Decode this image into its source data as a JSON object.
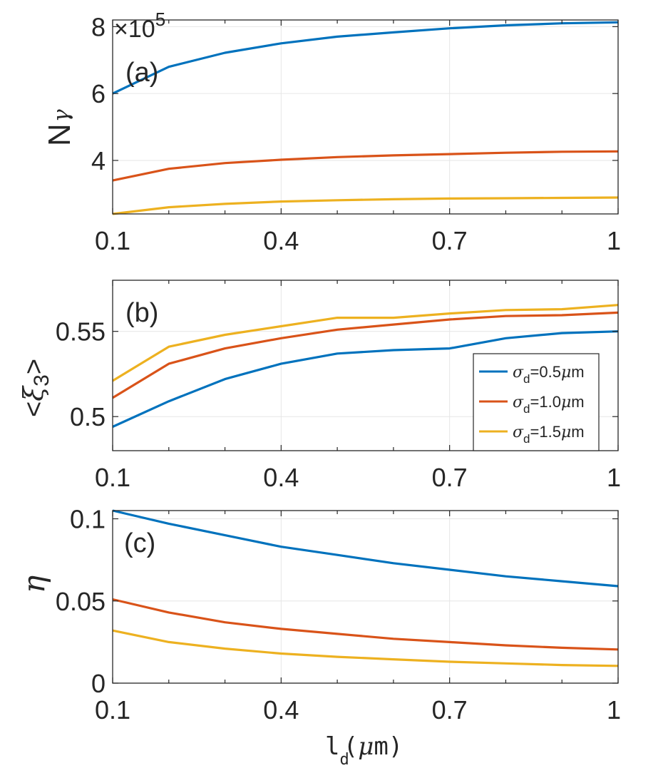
{
  "chart_data": [
    {
      "type": "line",
      "panel_label": "(a)",
      "ylabel_main": "N",
      "ylabel_sub": "γ",
      "exponent_prefix": "×10",
      "exponent_power": "5",
      "x": [
        0.1,
        0.2,
        0.3,
        0.4,
        0.5,
        0.6,
        0.7,
        0.8,
        0.9,
        1.0
      ],
      "xlim": [
        0.1,
        1.0
      ],
      "ylim": [
        2.4,
        8.2
      ],
      "xticks": [
        {
          "v": 0.1,
          "label": "0.1"
        },
        {
          "v": 0.4,
          "label": "0.4"
        },
        {
          "v": 0.7,
          "label": "0.7"
        },
        {
          "v": 1.0,
          "label": "1"
        }
      ],
      "yticks": [
        {
          "v": 4,
          "label": "4"
        },
        {
          "v": 6,
          "label": "6"
        },
        {
          "v": 8,
          "label": "8"
        }
      ],
      "grid": true,
      "series": [
        {
          "color": "#0072BD",
          "values": [
            6.0,
            6.8,
            7.22,
            7.5,
            7.7,
            7.83,
            7.95,
            8.04,
            8.1,
            8.13
          ]
        },
        {
          "color": "#D95319",
          "values": [
            3.4,
            3.75,
            3.92,
            4.02,
            4.1,
            4.15,
            4.19,
            4.23,
            4.26,
            4.27
          ]
        },
        {
          "color": "#EDB120",
          "values": [
            2.4,
            2.6,
            2.7,
            2.77,
            2.81,
            2.84,
            2.86,
            2.87,
            2.88,
            2.89
          ]
        }
      ]
    },
    {
      "type": "line",
      "panel_label": "(b)",
      "ylabel_left": "<",
      "ylabel_symbol": "ξ",
      "ylabel_sub": "3",
      "ylabel_right": ">",
      "x": [
        0.1,
        0.2,
        0.3,
        0.4,
        0.5,
        0.6,
        0.7,
        0.8,
        0.9,
        1.0
      ],
      "xlim": [
        0.1,
        1.0
      ],
      "ylim": [
        0.48,
        0.58
      ],
      "xticks": [
        {
          "v": 0.1,
          "label": "0.1"
        },
        {
          "v": 0.4,
          "label": "0.4"
        },
        {
          "v": 0.7,
          "label": "0.7"
        },
        {
          "v": 1.0,
          "label": "1"
        }
      ],
      "yticks": [
        {
          "v": 0.5,
          "label": "0.5"
        },
        {
          "v": 0.55,
          "label": "0.55"
        }
      ],
      "grid": true,
      "legend_position": "bottom-right",
      "series": [
        {
          "name_symbol": "σ",
          "name_sub": "d",
          "name_rest": "=0.5",
          "name_mu": "μ",
          "name_unit": "m",
          "color": "#0072BD",
          "values": [
            0.494,
            0.509,
            0.522,
            0.531,
            0.537,
            0.539,
            0.54,
            0.546,
            0.549,
            0.55
          ]
        },
        {
          "name_symbol": "σ",
          "name_sub": "d",
          "name_rest": "=1.0",
          "name_mu": "μ",
          "name_unit": "m",
          "color": "#D95319",
          "values": [
            0.511,
            0.531,
            0.54,
            0.546,
            0.551,
            0.554,
            0.557,
            0.559,
            0.5595,
            0.561
          ]
        },
        {
          "name_symbol": "σ",
          "name_sub": "d",
          "name_rest": "=1.5",
          "name_mu": "μ",
          "name_unit": "m",
          "color": "#EDB120",
          "values": [
            0.521,
            0.541,
            0.548,
            0.553,
            0.558,
            0.558,
            0.5605,
            0.5625,
            0.563,
            0.5655
          ]
        }
      ]
    },
    {
      "type": "line",
      "panel_label": "(c)",
      "ylabel_symbol": "η",
      "x": [
        0.1,
        0.2,
        0.3,
        0.4,
        0.5,
        0.6,
        0.7,
        0.8,
        0.9,
        1.0
      ],
      "xlim": [
        0.1,
        1.0
      ],
      "ylim": [
        0,
        0.105
      ],
      "xticks": [
        {
          "v": 0.1,
          "label": "0.1"
        },
        {
          "v": 0.4,
          "label": "0.4"
        },
        {
          "v": 0.7,
          "label": "0.7"
        },
        {
          "v": 1.0,
          "label": "1"
        }
      ],
      "yticks": [
        {
          "v": 0,
          "label": "0"
        },
        {
          "v": 0.05,
          "label": "0.05"
        },
        {
          "v": 0.1,
          "label": "0.1"
        }
      ],
      "grid": true,
      "xlabel_main": "l",
      "xlabel_sub": "d",
      "xlabel_unit_mu": "μ",
      "xlabel_unit_rest": "m)",
      "xlabel_open_paren": "(",
      "series": [
        {
          "color": "#0072BD",
          "values": [
            0.105,
            0.097,
            0.09,
            0.083,
            0.078,
            0.073,
            0.069,
            0.065,
            0.062,
            0.059
          ]
        },
        {
          "color": "#D95319",
          "values": [
            0.051,
            0.043,
            0.037,
            0.033,
            0.03,
            0.027,
            0.025,
            0.023,
            0.0215,
            0.0205
          ]
        },
        {
          "color": "#EDB120",
          "values": [
            0.032,
            0.025,
            0.021,
            0.018,
            0.016,
            0.0145,
            0.013,
            0.012,
            0.011,
            0.0105
          ]
        }
      ]
    }
  ]
}
